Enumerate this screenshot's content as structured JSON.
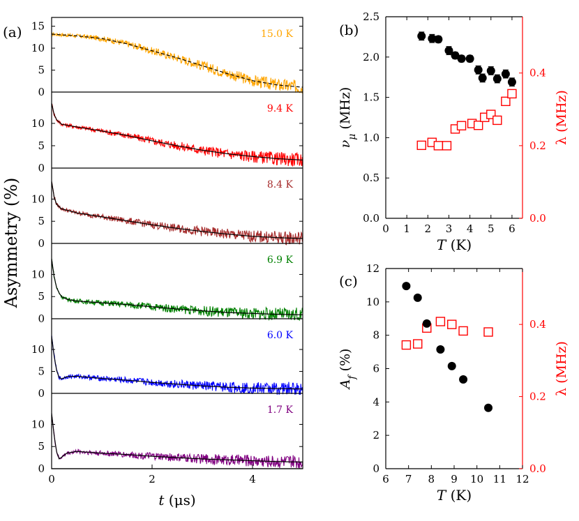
{
  "chart_data": [
    {
      "id": "a",
      "type": "line",
      "panel_label": "(a)",
      "ylabel": "Asymmetry (%)",
      "xlabel": "t (μs)",
      "xlabel_var": "t",
      "xlabel_unit": "(μs)",
      "xlim": [
        0,
        5
      ],
      "xticks": [
        0,
        2,
        4
      ],
      "series": [
        {
          "name": "15.0 K",
          "color": "#FFA500",
          "ylim": [
            0,
            17
          ],
          "yticks": [
            0,
            5,
            10,
            15
          ],
          "x": [
            0,
            0.5,
            1,
            1.5,
            2,
            2.5,
            3,
            3.5,
            4,
            4.5,
            5
          ],
          "values": [
            13.2,
            12.8,
            12.2,
            11.0,
            9.4,
            7.8,
            6.0,
            4.2,
            2.6,
            1.6,
            1.1
          ]
        },
        {
          "name": "9.4 K",
          "color": "#FF0000",
          "ylim": [
            0,
            17
          ],
          "yticks": [
            0,
            5,
            10
          ],
          "x": [
            0,
            0.05,
            0.1,
            0.2,
            0.5,
            1,
            1.5,
            2,
            2.5,
            3,
            3.5,
            4,
            4.5,
            5
          ],
          "values": [
            14.5,
            12.0,
            10.8,
            9.8,
            9.2,
            8.3,
            7.3,
            6.1,
            5.0,
            4.0,
            3.2,
            2.6,
            2.1,
            1.8
          ]
        },
        {
          "name": "8.4 K",
          "color": "#A52A2A",
          "ylim": [
            0,
            17
          ],
          "yticks": [
            0,
            5,
            10
          ],
          "x": [
            0,
            0.05,
            0.1,
            0.2,
            0.5,
            1,
            1.5,
            2,
            2.5,
            3,
            3.5,
            4,
            4.5,
            5
          ],
          "values": [
            14.0,
            10.5,
            8.8,
            7.8,
            6.9,
            6.0,
            5.1,
            4.2,
            3.4,
            2.7,
            2.1,
            1.6,
            1.3,
            1.1
          ]
        },
        {
          "name": "6.9 K",
          "color": "#008000",
          "ylim": [
            0,
            17
          ],
          "yticks": [
            0,
            5,
            10
          ],
          "x": [
            0,
            0.05,
            0.1,
            0.15,
            0.2,
            0.3,
            0.5,
            1,
            1.5,
            2,
            2.5,
            3,
            3.5,
            4,
            4.5,
            5
          ],
          "values": [
            13.5,
            9.5,
            7.0,
            5.8,
            5.0,
            4.4,
            4.0,
            3.6,
            3.2,
            2.7,
            2.2,
            1.8,
            1.4,
            1.2,
            1.0,
            0.9
          ]
        },
        {
          "name": "6.0 K",
          "color": "#0000FF",
          "ylim": [
            0,
            17
          ],
          "yticks": [
            0,
            5,
            10
          ],
          "x": [
            0,
            0.05,
            0.1,
            0.15,
            0.2,
            0.3,
            0.5,
            1,
            1.5,
            2,
            2.5,
            3,
            3.5,
            4,
            4.5,
            5
          ],
          "values": [
            13.0,
            8.5,
            5.2,
            3.6,
            3.3,
            3.8,
            3.9,
            3.4,
            3.0,
            2.5,
            2.1,
            1.7,
            1.4,
            1.2,
            1.1,
            1.0
          ]
        },
        {
          "name": "1.7 K",
          "color": "#800080",
          "ylim": [
            0,
            17
          ],
          "yticks": [
            0,
            5,
            10
          ],
          "x": [
            0,
            0.05,
            0.1,
            0.15,
            0.2,
            0.3,
            0.5,
            1,
            1.5,
            2,
            2.5,
            3,
            3.5,
            4,
            4.5,
            5
          ],
          "values": [
            12.5,
            7.5,
            3.8,
            2.2,
            2.6,
            3.5,
            3.9,
            3.5,
            3.2,
            2.8,
            2.5,
            2.2,
            2.0,
            1.8,
            1.6,
            1.5
          ]
        }
      ]
    },
    {
      "id": "b",
      "type": "scatter",
      "panel_label": "(b)",
      "xlabel_var": "T",
      "xlabel_unit": "(K)",
      "xlim": [
        0,
        6.5
      ],
      "xticks": [
        0,
        1,
        2,
        3,
        4,
        5,
        6
      ],
      "ylabel_left_var": "ν",
      "ylabel_left_sub": "μ",
      "ylabel_left_unit": "(MHz)",
      "ylim_left": [
        0,
        2.5
      ],
      "yticks_left": [
        "0.0",
        "0.5",
        "1.0",
        "1.5",
        "2.0",
        "2.5"
      ],
      "ylabel_right": "λ (MHz)",
      "ylim_right": [
        0,
        0.555
      ],
      "yticks_right": [
        "0.0",
        "0.2",
        "0.4"
      ],
      "nu": {
        "name": "ν_μ",
        "color": "#000000",
        "marker": "filled-circle",
        "x": [
          1.7,
          2.2,
          2.5,
          3.0,
          3.3,
          3.6,
          4.0,
          4.4,
          4.6,
          5.0,
          5.3,
          5.7,
          6.0
        ],
        "values": [
          2.26,
          2.23,
          2.22,
          2.08,
          2.02,
          1.98,
          1.98,
          1.84,
          1.74,
          1.83,
          1.73,
          1.79,
          1.69
        ],
        "errors": [
          0.05,
          0.05,
          0.04,
          0.05,
          0.04,
          0.04,
          0.04,
          0.05,
          0.05,
          0.05,
          0.05,
          0.05,
          0.05
        ]
      },
      "lambda": {
        "name": "λ",
        "color": "#FF0000",
        "marker": "open-square",
        "x": [
          1.7,
          2.2,
          2.5,
          2.9,
          3.3,
          3.6,
          4.1,
          4.4,
          4.7,
          5.0,
          5.3,
          5.7,
          6.0
        ],
        "values": [
          0.201,
          0.209,
          0.2,
          0.2,
          0.246,
          0.255,
          0.261,
          0.256,
          0.278,
          0.286,
          0.27,
          0.322,
          0.343
        ]
      }
    },
    {
      "id": "c",
      "type": "scatter",
      "panel_label": "(c)",
      "xlabel_var": "T",
      "xlabel_unit": "(K)",
      "xlim": [
        6,
        12
      ],
      "xticks": [
        6,
        7,
        8,
        9,
        10,
        11,
        12
      ],
      "ylabel_left_var": "A",
      "ylabel_left_sub": "f",
      "ylabel_left_unit": "(%)",
      "ylim_left": [
        0,
        12
      ],
      "yticks_left": [
        "0",
        "2",
        "4",
        "6",
        "8",
        "10",
        "12"
      ],
      "ylabel_right": "λ (MHz)",
      "ylim_right": [
        0,
        0.555
      ],
      "yticks_right": [
        "0.0",
        "0.2",
        "0.4"
      ],
      "af": {
        "name": "A_f",
        "color": "#000000",
        "marker": "filled-circle",
        "x": [
          6.9,
          7.4,
          7.8,
          8.4,
          8.9,
          9.4,
          10.5
        ],
        "values": [
          10.95,
          10.25,
          8.7,
          7.15,
          6.15,
          5.35,
          3.65
        ]
      },
      "lambda": {
        "name": "λ",
        "color": "#FF0000",
        "marker": "open-square",
        "x": [
          6.9,
          7.4,
          7.8,
          8.4,
          8.9,
          9.4,
          10.5
        ],
        "values": [
          0.343,
          0.346,
          0.39,
          0.408,
          0.4,
          0.382,
          0.379
        ]
      }
    }
  ]
}
